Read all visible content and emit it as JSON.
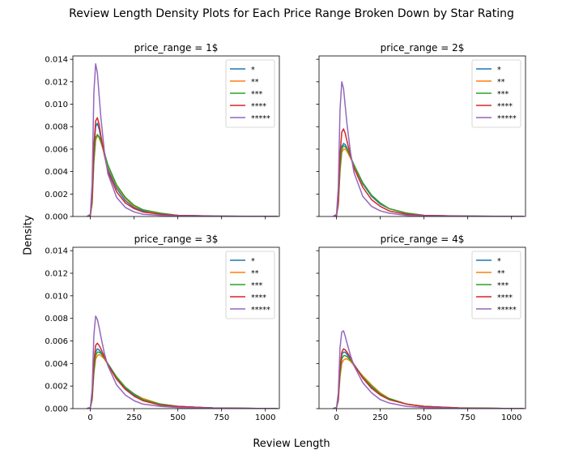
{
  "figure": {
    "title": "Review Length Density Plots for Each Price Range Broken Down by Star Rating",
    "xlabel": "Review Length",
    "ylabel": "Density"
  },
  "chart_data": [
    {
      "type": "line",
      "title": "price_range = 1$",
      "xlim": [
        -100,
        1080
      ],
      "ylim": [
        0,
        0.0143
      ],
      "xticks": [
        0,
        250,
        500,
        750,
        1000
      ],
      "yticks": [
        0.0,
        0.002,
        0.004,
        0.006,
        0.008,
        0.01,
        0.012,
        0.014
      ],
      "ytick_labels": [
        "0.000",
        "0.002",
        "0.004",
        "0.006",
        "0.008",
        "0.010",
        "0.012",
        "0.014"
      ],
      "legend": "top-right",
      "x": [
        -20,
        0,
        10,
        20,
        30,
        40,
        50,
        60,
        80,
        100,
        150,
        200,
        250,
        300,
        400,
        500,
        700,
        1000,
        1070
      ],
      "series": [
        {
          "name": "*",
          "color": "#1f77b4",
          "values": [
            0,
            0.0001,
            0.0015,
            0.0057,
            0.008,
            0.0083,
            0.0078,
            0.007,
            0.0055,
            0.0042,
            0.0025,
            0.0014,
            0.0008,
            0.0005,
            0.0002,
            0.0001,
            3e-05,
            1e-05,
            0
          ]
        },
        {
          "name": "**",
          "color": "#ff7f0e",
          "values": [
            0,
            0.0001,
            0.0012,
            0.0048,
            0.0068,
            0.0072,
            0.007,
            0.0066,
            0.0056,
            0.0045,
            0.0027,
            0.0016,
            0.0009,
            0.0006,
            0.0002,
            0.0001,
            3e-05,
            1e-05,
            0
          ]
        },
        {
          "name": "***",
          "color": "#2ca02c",
          "values": [
            0,
            0.0001,
            0.0012,
            0.005,
            0.007,
            0.0073,
            0.0071,
            0.0067,
            0.0057,
            0.0046,
            0.0028,
            0.0017,
            0.001,
            0.0006,
            0.0003,
            0.0001,
            4e-05,
            1e-05,
            0
          ]
        },
        {
          "name": "****",
          "color": "#d62728",
          "values": [
            0,
            0.0001,
            0.0016,
            0.0062,
            0.0085,
            0.0088,
            0.0082,
            0.0072,
            0.0055,
            0.004,
            0.0022,
            0.0012,
            0.0007,
            0.0004,
            0.0002,
            0.0001,
            3e-05,
            1e-05,
            0
          ]
        },
        {
          "name": "*****",
          "color": "#9467bd",
          "values": [
            0,
            0.0002,
            0.003,
            0.011,
            0.0136,
            0.0128,
            0.0108,
            0.0088,
            0.0058,
            0.0038,
            0.0017,
            0.0008,
            0.0004,
            0.0002,
            0.0001,
            5e-05,
            2e-05,
            1e-05,
            0
          ]
        }
      ]
    },
    {
      "type": "line",
      "title": "price_range = 2$",
      "xlim": [
        -100,
        1080
      ],
      "ylim": [
        0,
        0.0143
      ],
      "xticks": [
        0,
        250,
        500,
        750,
        1000
      ],
      "yticks": [
        0.0,
        0.002,
        0.004,
        0.006,
        0.008,
        0.01,
        0.012,
        0.014
      ],
      "legend": "top-right",
      "x": [
        -20,
        0,
        10,
        20,
        30,
        40,
        50,
        60,
        80,
        100,
        150,
        200,
        250,
        300,
        400,
        500,
        700,
        1000,
        1070
      ],
      "series": [
        {
          "name": "*",
          "color": "#1f77b4",
          "values": [
            0,
            0.0001,
            0.0012,
            0.0045,
            0.0062,
            0.0065,
            0.0064,
            0.0061,
            0.0053,
            0.0045,
            0.0029,
            0.0018,
            0.0011,
            0.0007,
            0.0003,
            0.0001,
            4e-05,
            1e-05,
            0
          ]
        },
        {
          "name": "**",
          "color": "#ff7f0e",
          "values": [
            0,
            0.0001,
            0.001,
            0.004,
            0.0057,
            0.006,
            0.006,
            0.0058,
            0.0052,
            0.0045,
            0.003,
            0.0019,
            0.0012,
            0.0007,
            0.0003,
            0.0001,
            4e-05,
            1e-05,
            0
          ]
        },
        {
          "name": "***",
          "color": "#2ca02c",
          "values": [
            0,
            0.0001,
            0.0011,
            0.0043,
            0.006,
            0.0063,
            0.0062,
            0.006,
            0.0053,
            0.0046,
            0.003,
            0.0019,
            0.0012,
            0.0007,
            0.0003,
            0.0001,
            4e-05,
            1e-05,
            0
          ]
        },
        {
          "name": "****",
          "color": "#d62728",
          "values": [
            0,
            0.0001,
            0.0014,
            0.0055,
            0.0075,
            0.0078,
            0.0074,
            0.0067,
            0.0054,
            0.0043,
            0.0026,
            0.0015,
            0.0009,
            0.0005,
            0.0002,
            0.0001,
            3e-05,
            1e-05,
            0
          ]
        },
        {
          "name": "*****",
          "color": "#9467bd",
          "values": [
            0,
            0.0002,
            0.0026,
            0.0095,
            0.012,
            0.0114,
            0.0098,
            0.0082,
            0.0057,
            0.0039,
            0.0018,
            0.0009,
            0.0005,
            0.0003,
            0.0001,
            5e-05,
            2e-05,
            1e-05,
            0
          ]
        }
      ]
    },
    {
      "type": "line",
      "title": "price_range = 3$",
      "xlim": [
        -100,
        1080
      ],
      "ylim": [
        0,
        0.0143
      ],
      "xticks": [
        0,
        250,
        500,
        750,
        1000
      ],
      "xtick_labels": [
        "0",
        "250",
        "500",
        "750",
        "1000"
      ],
      "yticks": [
        0.0,
        0.002,
        0.004,
        0.006,
        0.008,
        0.01,
        0.012,
        0.014
      ],
      "ytick_labels": [
        "0.000",
        "0.002",
        "0.004",
        "0.006",
        "0.008",
        "0.010",
        "0.012",
        "0.014"
      ],
      "legend": "top-right",
      "x": [
        -20,
        0,
        10,
        20,
        30,
        40,
        50,
        60,
        80,
        100,
        150,
        200,
        250,
        300,
        400,
        500,
        700,
        1000,
        1070
      ],
      "series": [
        {
          "name": "*",
          "color": "#1f77b4",
          "values": [
            0,
            0.0001,
            0.0009,
            0.0036,
            0.005,
            0.0053,
            0.0052,
            0.005,
            0.0045,
            0.0039,
            0.0027,
            0.0018,
            0.0012,
            0.0008,
            0.0004,
            0.0002,
            6e-05,
            1e-05,
            0
          ]
        },
        {
          "name": "**",
          "color": "#ff7f0e",
          "values": [
            0,
            0.0001,
            0.0008,
            0.0031,
            0.0044,
            0.0047,
            0.0048,
            0.0047,
            0.0044,
            0.0039,
            0.0028,
            0.0019,
            0.0013,
            0.0009,
            0.0004,
            0.0002,
            6e-05,
            1e-05,
            0
          ]
        },
        {
          "name": "***",
          "color": "#2ca02c",
          "values": [
            0,
            0.0001,
            0.0008,
            0.0033,
            0.0047,
            0.005,
            0.005,
            0.0049,
            0.0045,
            0.004,
            0.0028,
            0.0019,
            0.0013,
            0.0008,
            0.0004,
            0.0002,
            6e-05,
            1e-05,
            0
          ]
        },
        {
          "name": "****",
          "color": "#d62728",
          "values": [
            0,
            0.0001,
            0.0011,
            0.0041,
            0.0056,
            0.0058,
            0.0056,
            0.0053,
            0.0046,
            0.0039,
            0.0026,
            0.0017,
            0.0011,
            0.0007,
            0.0003,
            0.0002,
            5e-05,
            1e-05,
            0
          ]
        },
        {
          "name": "*****",
          "color": "#9467bd",
          "values": [
            0,
            0.0001,
            0.0017,
            0.0065,
            0.0082,
            0.0079,
            0.0072,
            0.0064,
            0.0049,
            0.0038,
            0.0021,
            0.0012,
            0.0007,
            0.0004,
            0.0002,
            0.0001,
            3e-05,
            1e-05,
            0
          ]
        }
      ]
    },
    {
      "type": "line",
      "title": "price_range = 4$",
      "xlim": [
        -100,
        1080
      ],
      "ylim": [
        0,
        0.0143
      ],
      "xticks": [
        0,
        250,
        500,
        750,
        1000
      ],
      "xtick_labels": [
        "0",
        "250",
        "500",
        "750",
        "1000"
      ],
      "yticks": [
        0.0,
        0.002,
        0.004,
        0.006,
        0.008,
        0.01,
        0.012,
        0.014
      ],
      "legend": "top-right",
      "x": [
        -20,
        0,
        10,
        20,
        30,
        40,
        50,
        60,
        80,
        100,
        150,
        200,
        250,
        300,
        400,
        500,
        700,
        1000,
        1070
      ],
      "series": [
        {
          "name": "*",
          "color": "#1f77b4",
          "values": [
            0,
            0.0001,
            0.0008,
            0.0034,
            0.0048,
            0.005,
            0.005,
            0.0048,
            0.0044,
            0.0039,
            0.0028,
            0.0019,
            0.0013,
            0.0009,
            0.0004,
            0.0002,
            6e-05,
            1e-05,
            0
          ]
        },
        {
          "name": "**",
          "color": "#ff7f0e",
          "values": [
            0,
            0.0001,
            0.0007,
            0.0028,
            0.004,
            0.0043,
            0.0044,
            0.0044,
            0.0042,
            0.0038,
            0.0029,
            0.0021,
            0.0014,
            0.0009,
            0.0004,
            0.0002,
            7e-05,
            1e-05,
            0
          ]
        },
        {
          "name": "***",
          "color": "#2ca02c",
          "values": [
            0,
            0.0001,
            0.0007,
            0.0031,
            0.0044,
            0.0047,
            0.0047,
            0.0046,
            0.0043,
            0.0039,
            0.0028,
            0.002,
            0.0013,
            0.0009,
            0.0004,
            0.0002,
            6e-05,
            1e-05,
            0
          ]
        },
        {
          "name": "****",
          "color": "#d62728",
          "values": [
            0,
            0.0001,
            0.0009,
            0.0037,
            0.005,
            0.0053,
            0.0052,
            0.005,
            0.0045,
            0.0039,
            0.0027,
            0.0018,
            0.0012,
            0.0008,
            0.0004,
            0.0002,
            5e-05,
            1e-05,
            0
          ]
        },
        {
          "name": "*****",
          "color": "#9467bd",
          "values": [
            0,
            0.0001,
            0.0014,
            0.0054,
            0.0068,
            0.0069,
            0.0064,
            0.0058,
            0.0047,
            0.0038,
            0.0023,
            0.0014,
            0.0008,
            0.0005,
            0.0002,
            0.0001,
            3e-05,
            1e-05,
            0
          ]
        }
      ]
    }
  ]
}
